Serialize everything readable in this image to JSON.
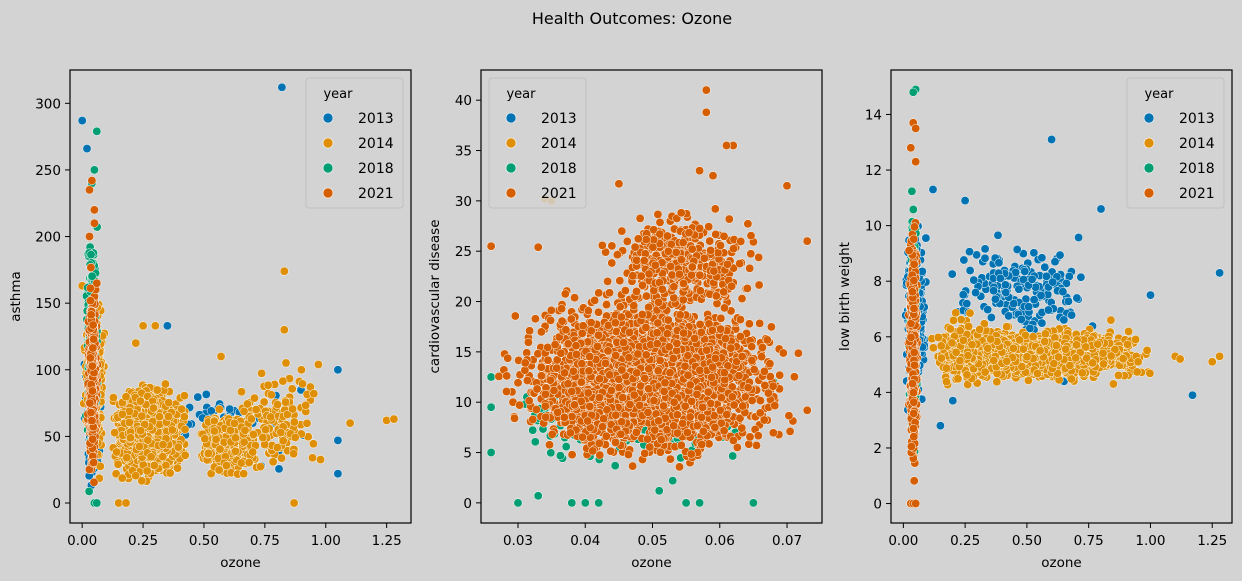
{
  "figure_title": "Health Outcomes: Ozone",
  "colors": {
    "2013": "#0173b2",
    "2014": "#de8f05",
    "2018": "#029e73",
    "2021": "#d55e00",
    "background": "#d3d3d3"
  },
  "chart_data": [
    {
      "type": "scatter",
      "xlabel": "ozone",
      "ylabel": "asthma",
      "xlim": [
        -0.05,
        1.35
      ],
      "ylim": [
        -15,
        325
      ],
      "xticks": [
        0.0,
        0.25,
        0.5,
        0.75,
        1.0,
        1.25
      ],
      "xtick_labels": [
        "0.00",
        "0.25",
        "0.50",
        "0.75",
        "1.00",
        "1.25"
      ],
      "yticks": [
        0,
        50,
        100,
        150,
        200,
        250,
        300
      ],
      "ytick_labels": [
        "0",
        "50",
        "100",
        "150",
        "200",
        "250",
        "300"
      ],
      "legend": {
        "title": "year",
        "placement": "top-right",
        "entries": [
          "2013",
          "2014",
          "2018",
          "2021"
        ]
      },
      "series": [
        {
          "name": "2013",
          "clusters": [
            {
              "x": [
                0.0,
                0.08
              ],
              "y": [
                10,
                140
              ],
              "n": 150
            },
            {
              "x": [
                0.1,
                1.05
              ],
              "y": [
                20,
                100
              ],
              "n": 60
            }
          ],
          "points": [
            [
              0.0,
              287
            ],
            [
              0.02,
              266
            ],
            [
              0.82,
              312
            ],
            [
              1.05,
              100
            ],
            [
              1.05,
              22
            ],
            [
              1.05,
              47
            ],
            [
              0.35,
              133
            ],
            [
              0.7,
              60
            ]
          ]
        },
        {
          "name": "2014",
          "clusters": [
            {
              "x": [
                0.0,
                0.1
              ],
              "y": [
                5,
                170
              ],
              "n": 220
            },
            {
              "x": [
                0.1,
                0.45
              ],
              "y": [
                10,
                95
              ],
              "n": 1100
            },
            {
              "x": [
                0.45,
                0.75
              ],
              "y": [
                15,
                75
              ],
              "n": 450
            },
            {
              "x": [
                0.6,
                1.0
              ],
              "y": [
                15,
                110
              ],
              "n": 130
            }
          ],
          "points": [
            [
              0.0,
              163
            ],
            [
              0.83,
              174
            ],
            [
              0.83,
              130
            ],
            [
              0.87,
              0
            ],
            [
              1.1,
              60
            ],
            [
              1.25,
              62
            ],
            [
              1.28,
              63
            ],
            [
              0.25,
              133
            ],
            [
              0.3,
              133
            ],
            [
              0.22,
              120
            ],
            [
              0.15,
              0
            ],
            [
              0.18,
              0
            ],
            [
              0.57,
              110
            ],
            [
              0.97,
              104
            ],
            [
              0.9,
              100
            ]
          ]
        },
        {
          "name": "2018",
          "clusters": [
            {
              "x": [
                0.01,
                0.07
              ],
              "y": [
                0,
                230
              ],
              "n": 160
            }
          ],
          "points": [
            [
              0.06,
              279
            ],
            [
              0.05,
              250
            ],
            [
              0.04,
              240
            ],
            [
              0.05,
              0
            ],
            [
              0.06,
              0
            ]
          ]
        },
        {
          "name": "2021",
          "clusters": [
            {
              "x": [
                0.02,
                0.065
              ],
              "y": [
                0,
                180
              ],
              "n": 420
            }
          ],
          "points": [
            [
              0.03,
              235
            ],
            [
              0.04,
              242
            ],
            [
              0.05,
              220
            ],
            [
              0.03,
              200
            ],
            [
              0.05,
              210
            ],
            [
              0.06,
              165
            ]
          ]
        }
      ]
    },
    {
      "type": "scatter",
      "xlabel": "ozone",
      "ylabel": "cardiovascular disease",
      "xlim": [
        0.0245,
        0.0752
      ],
      "ylim": [
        -2,
        43
      ],
      "xticks": [
        0.03,
        0.04,
        0.05,
        0.06,
        0.07
      ],
      "xtick_labels": [
        "0.03",
        "0.04",
        "0.05",
        "0.06",
        "0.07"
      ],
      "yticks": [
        0,
        5,
        10,
        15,
        20,
        25,
        30,
        35,
        40
      ],
      "ytick_labels": [
        "0",
        "5",
        "10",
        "15",
        "20",
        "25",
        "30",
        "35",
        "40"
      ],
      "legend": {
        "title": "year",
        "placement": "top-left",
        "entries": [
          "2013",
          "2014",
          "2018",
          "2021"
        ]
      },
      "series": [
        {
          "name": "2013",
          "clusters": [],
          "points": []
        },
        {
          "name": "2014",
          "clusters": [],
          "points": [
            [
              0.034,
              30.2
            ],
            [
              0.035,
              30.0
            ]
          ]
        },
        {
          "name": "2018",
          "clusters": [
            {
              "x": [
                0.026,
                0.068
              ],
              "y": [
                3,
                14
              ],
              "n": 220
            }
          ],
          "points": [
            [
              0.026,
              12.5
            ],
            [
              0.026,
              9.5
            ],
            [
              0.026,
              5.0
            ],
            [
              0.03,
              0
            ],
            [
              0.033,
              0.7
            ],
            [
              0.038,
              0
            ],
            [
              0.04,
              0
            ],
            [
              0.042,
              0
            ],
            [
              0.051,
              1.2
            ],
            [
              0.053,
              2.2
            ],
            [
              0.055,
              0
            ],
            [
              0.057,
              0
            ],
            [
              0.065,
              0
            ],
            [
              0.068,
              12.0
            ]
          ]
        },
        {
          "name": "2021",
          "clusters": [
            {
              "x": [
                0.026,
                0.073
              ],
              "y": [
                3,
                22
              ],
              "n": 3200
            },
            {
              "x": [
                0.04,
                0.068
              ],
              "y": [
                18,
                30
              ],
              "n": 420
            }
          ],
          "points": [
            [
              0.058,
              41.0
            ],
            [
              0.058,
              38.8
            ],
            [
              0.062,
              35.5
            ],
            [
              0.061,
              35.5
            ],
            [
              0.045,
              31.7
            ],
            [
              0.057,
              33.0
            ],
            [
              0.059,
              32.5
            ],
            [
              0.07,
              31.5
            ],
            [
              0.026,
              25.5
            ],
            [
              0.033,
              25.4
            ],
            [
              0.073,
              26.0
            ],
            [
              0.073,
              9.2
            ]
          ]
        }
      ]
    },
    {
      "type": "scatter",
      "xlabel": "ozone",
      "ylabel": "low birth weight",
      "xlim": [
        -0.05,
        1.33
      ],
      "ylim": [
        -0.7,
        15.6
      ],
      "xticks": [
        0.0,
        0.25,
        0.5,
        0.75,
        1.0,
        1.25
      ],
      "xtick_labels": [
        "0.00",
        "0.25",
        "0.50",
        "0.75",
        "1.00",
        "1.25"
      ],
      "yticks": [
        0,
        2,
        4,
        6,
        8,
        10,
        12,
        14
      ],
      "ytick_labels": [
        "0",
        "2",
        "4",
        "6",
        "8",
        "10",
        "12",
        "14"
      ],
      "legend": {
        "title": "year",
        "placement": "top-right",
        "entries": [
          "2013",
          "2014",
          "2018",
          "2021"
        ]
      },
      "series": [
        {
          "name": "2013",
          "clusters": [
            {
              "x": [
                0.0,
                0.1
              ],
              "y": [
                2.5,
                11.0
              ],
              "n": 260
            },
            {
              "x": [
                0.1,
                0.85
              ],
              "y": [
                5.5,
                10.0
              ],
              "n": 190
            }
          ],
          "points": [
            [
              0.6,
              13.1
            ],
            [
              0.8,
              10.6
            ],
            [
              1.28,
              8.3
            ],
            [
              1.17,
              3.9
            ],
            [
              1.0,
              7.5
            ],
            [
              0.12,
              11.3
            ],
            [
              0.25,
              10.9
            ],
            [
              0.15,
              2.8
            ],
            [
              0.65,
              4.4
            ],
            [
              0.2,
              3.7
            ]
          ]
        },
        {
          "name": "2014",
          "clusters": [
            {
              "x": [
                0.08,
                1.05
              ],
              "y": [
                4.3,
                6.4
              ],
              "n": 1700
            },
            {
              "x": [
                0.08,
                0.4
              ],
              "y": [
                3.8,
                7.2
              ],
              "n": 160
            }
          ],
          "points": [
            [
              1.1,
              5.3
            ],
            [
              1.12,
              5.2
            ],
            [
              1.25,
              5.1
            ],
            [
              1.28,
              5.3
            ],
            [
              0.85,
              4.3
            ],
            [
              0.84,
              6.6
            ]
          ]
        },
        {
          "name": "2018",
          "clusters": [
            {
              "x": [
                0.02,
                0.06
              ],
              "y": [
                1.0,
                12.0
              ],
              "n": 180
            }
          ],
          "points": [
            [
              0.05,
              14.9
            ],
            [
              0.04,
              14.8
            ],
            [
              0.03,
              0
            ],
            [
              0.05,
              0
            ]
          ]
        },
        {
          "name": "2021",
          "clusters": [
            {
              "x": [
                0.02,
                0.06
              ],
              "y": [
                0.5,
                11.0
              ],
              "n": 400
            }
          ],
          "points": [
            [
              0.04,
              13.7
            ],
            [
              0.05,
              13.5
            ],
            [
              0.03,
              12.8
            ],
            [
              0.05,
              12.3
            ],
            [
              0.03,
              0
            ],
            [
              0.04,
              0
            ],
            [
              0.05,
              0
            ]
          ]
        }
      ]
    }
  ]
}
